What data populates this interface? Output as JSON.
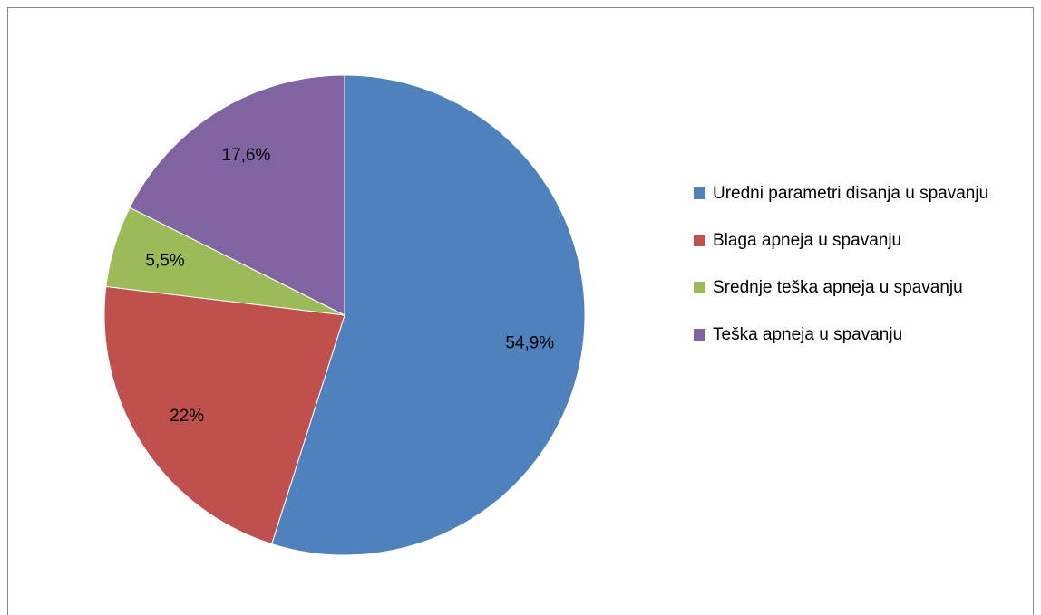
{
  "chart_data": {
    "type": "pie",
    "categories": [
      "Uredni parametri disanja u spavanju",
      "Blaga apneja u spavanju",
      "Srednje teška apneja u spavanju",
      "Teška apneja u spavanju"
    ],
    "values": [
      54.9,
      22,
      5.5,
      17.6
    ],
    "value_labels": [
      "54,9%",
      "22%",
      "5,5%",
      "17,6%"
    ],
    "colors": [
      "#4f81bd",
      "#c0504d",
      "#9bbb59",
      "#8064a2"
    ],
    "legend": "right"
  }
}
